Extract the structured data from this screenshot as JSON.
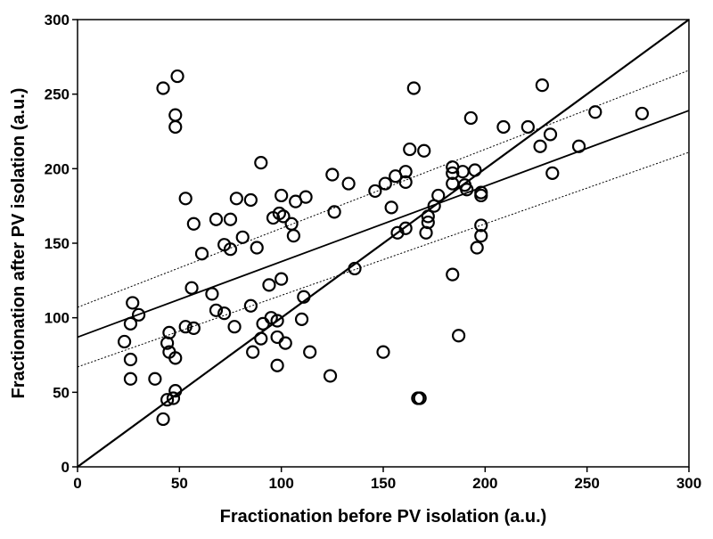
{
  "chart_data": {
    "type": "scatter",
    "title": "",
    "xlabel": "Fractionation before PV isolation (a.u.)",
    "ylabel": "Fractionation after PV isolation (a.u.)",
    "xlim": [
      0,
      300
    ],
    "ylim": [
      0,
      300
    ],
    "x_ticks": [
      "0",
      "50",
      "100",
      "150",
      "200",
      "250",
      "300"
    ],
    "y_ticks": [
      "0",
      "50",
      "100",
      "150",
      "200",
      "250",
      "300"
    ],
    "grid": false,
    "legend": "none",
    "marker": "open-circle",
    "colors": {
      "marker": "#000000",
      "lines": "#000000",
      "background": "#ffffff"
    },
    "points": [
      [
        42,
        254
      ],
      [
        49,
        262
      ],
      [
        48,
        236
      ],
      [
        48,
        228
      ],
      [
        27,
        110
      ],
      [
        30,
        102
      ],
      [
        26,
        96
      ],
      [
        23,
        84
      ],
      [
        26,
        72
      ],
      [
        26,
        59
      ],
      [
        38,
        59
      ],
      [
        42,
        32
      ],
      [
        44,
        45
      ],
      [
        47,
        46
      ],
      [
        48,
        51
      ],
      [
        45,
        90
      ],
      [
        44,
        83
      ],
      [
        45,
        77
      ],
      [
        48,
        73
      ],
      [
        53,
        180
      ],
      [
        57,
        163
      ],
      [
        61,
        143
      ],
      [
        56,
        120
      ],
      [
        53,
        94
      ],
      [
        57,
        93
      ],
      [
        68,
        166
      ],
      [
        75,
        166
      ],
      [
        72,
        149
      ],
      [
        75,
        146
      ],
      [
        78,
        180
      ],
      [
        66,
        116
      ],
      [
        68,
        105
      ],
      [
        72,
        103
      ],
      [
        77,
        94
      ],
      [
        81,
        154
      ],
      [
        85,
        179
      ],
      [
        85,
        108
      ],
      [
        86,
        77
      ],
      [
        88,
        147
      ],
      [
        90,
        204
      ],
      [
        91,
        96
      ],
      [
        90,
        86
      ],
      [
        94,
        122
      ],
      [
        95,
        100
      ],
      [
        96,
        167
      ],
      [
        98,
        98
      ],
      [
        98,
        87
      ],
      [
        98,
        68
      ],
      [
        100,
        182
      ],
      [
        99,
        170
      ],
      [
        101,
        168
      ],
      [
        100,
        126
      ],
      [
        102,
        83
      ],
      [
        105,
        163
      ],
      [
        106,
        155
      ],
      [
        107,
        178
      ],
      [
        110,
        99
      ],
      [
        111,
        114
      ],
      [
        112,
        181
      ],
      [
        114,
        77
      ],
      [
        124,
        61
      ],
      [
        125,
        196
      ],
      [
        126,
        171
      ],
      [
        133,
        190
      ],
      [
        136,
        133
      ],
      [
        146,
        185
      ],
      [
        150,
        77
      ],
      [
        151,
        190
      ],
      [
        154,
        174
      ],
      [
        156,
        195
      ],
      [
        157,
        157
      ],
      [
        161,
        198
      ],
      [
        161,
        191
      ],
      [
        161,
        160
      ],
      [
        163,
        213
      ],
      [
        165,
        254
      ],
      [
        167,
        46
      ],
      [
        168,
        46
      ],
      [
        170,
        212
      ],
      [
        171,
        157
      ],
      [
        172,
        168
      ],
      [
        172,
        164
      ],
      [
        175,
        175
      ],
      [
        177,
        182
      ],
      [
        184,
        201
      ],
      [
        184,
        197
      ],
      [
        184,
        190
      ],
      [
        184,
        129
      ],
      [
        187,
        88
      ],
      [
        189,
        198
      ],
      [
        190,
        189
      ],
      [
        191,
        186
      ],
      [
        193,
        234
      ],
      [
        195,
        199
      ],
      [
        196,
        147
      ],
      [
        198,
        184
      ],
      [
        198,
        182
      ],
      [
        198,
        162
      ],
      [
        198,
        155
      ],
      [
        209,
        228
      ],
      [
        221,
        228
      ],
      [
        227,
        215
      ],
      [
        228,
        256
      ],
      [
        232,
        223
      ],
      [
        233,
        197
      ],
      [
        246,
        215
      ],
      [
        254,
        238
      ],
      [
        277,
        237
      ]
    ],
    "lines": [
      {
        "kind": "identity",
        "style": "solid",
        "x": [
          0,
          300
        ],
        "y": [
          0,
          300
        ]
      },
      {
        "kind": "regression",
        "style": "solid",
        "x": [
          0,
          300
        ],
        "y": [
          87,
          239
        ]
      },
      {
        "kind": "confidence-upper",
        "style": "dotted",
        "x": [
          0,
          300
        ],
        "y": [
          107,
          266
        ]
      },
      {
        "kind": "confidence-lower",
        "style": "dotted",
        "x": [
          0,
          300
        ],
        "y": [
          67,
          211
        ]
      }
    ]
  }
}
